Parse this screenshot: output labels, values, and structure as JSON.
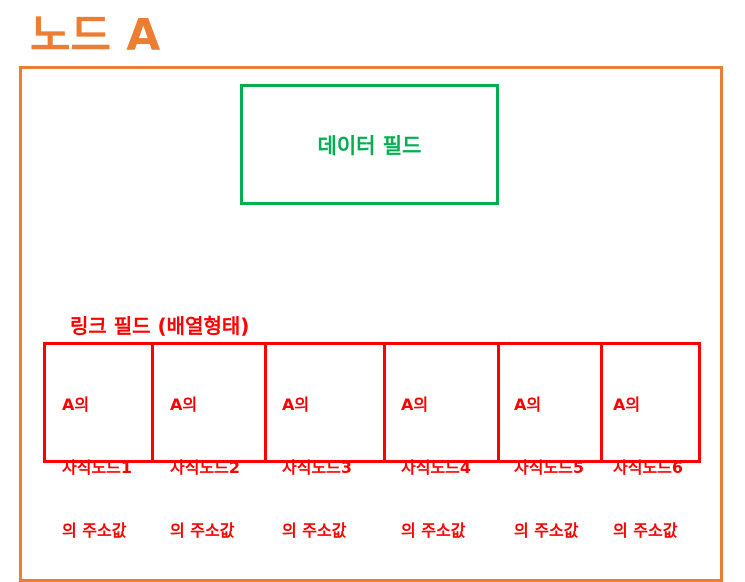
{
  "node": {
    "title": "노드 A",
    "border_color": "#ed7d31"
  },
  "data_field": {
    "label": "데이터 필드",
    "color": "#00b050"
  },
  "link_field": {
    "title": "링크 필드 (배열형태)",
    "color": "#ff0000",
    "cells": [
      {
        "line1": "A의",
        "line2": "자식노드1",
        "line3": "의 주소값"
      },
      {
        "line1": "A의",
        "line2": "자식노드2",
        "line3": "의 주소값"
      },
      {
        "line1": "A의",
        "line2": "자식노드3",
        "line3": "의 주소값"
      },
      {
        "line1": "A의",
        "line2": "자식노드4",
        "line3": "의 주소값"
      },
      {
        "line1": "A의",
        "line2": "자식노드5",
        "line3": "의 주소값"
      },
      {
        "line1": "A의",
        "line2": "자식노드6",
        "line3": "의 주소값"
      }
    ]
  }
}
